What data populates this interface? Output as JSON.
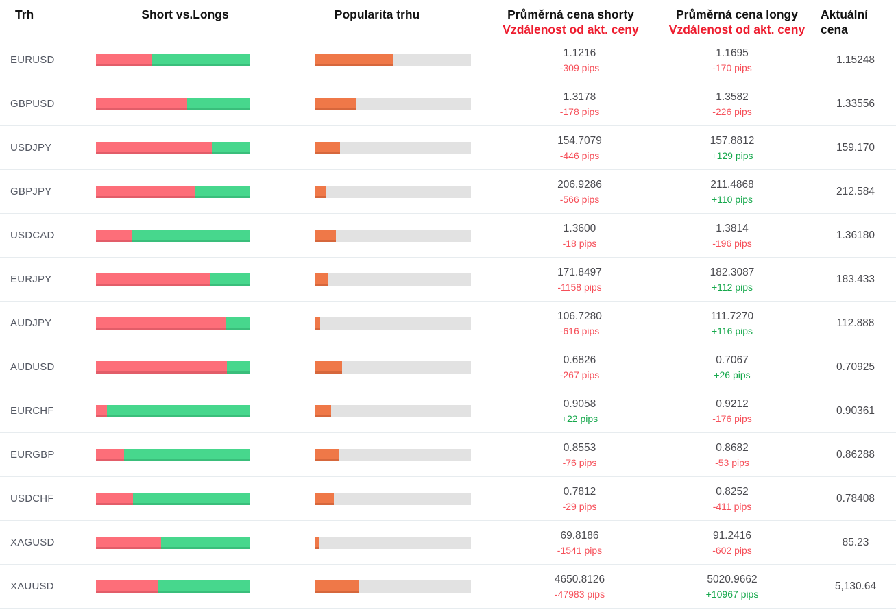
{
  "header": {
    "col_market": "Trh",
    "col_short_vs_longs": "Short vs.Longs",
    "col_popularity": "Popularita trhu",
    "col_avg_short_line1": "Průměrná cena shorty",
    "col_avg_short_line2": "Vzdálenost od akt. ceny",
    "col_avg_long_line1": "Průměrná cena longy",
    "col_avg_long_line2": "Vzdálenost od akt. ceny",
    "col_current_line1": "Aktuální",
    "col_current_line2": "cena"
  },
  "colors": {
    "short_bar": "#fd6e79",
    "short_bar_edge": "#e25d69",
    "long_bar": "#47d78d",
    "long_bar_edge": "#3abe7b",
    "popularity_bar": "#ef7848",
    "popularity_bar_edge": "#d6673c",
    "bar_track": "#e2e2e2",
    "negative_pips": "#f6505a",
    "positive_pips": "#16a84c",
    "header_red": "#ee1c2e",
    "row_separator": "#e7ecef"
  },
  "chart_data": {
    "type": "table",
    "columns": [
      "Trh",
      "Short vs.Longs",
      "Popularita trhu",
      "Průměrná cena shorty / Vzdálenost od akt. ceny",
      "Průměrná cena longy / Vzdálenost od akt. ceny",
      "Aktuální cena"
    ],
    "rows": [
      {
        "market": "EURUSD",
        "short_pct": 36,
        "long_pct": 64,
        "popularity_pct": 50,
        "avg_short_price": "1.1216",
        "short_distance": "-309 pips",
        "short_sign": "neg",
        "avg_long_price": "1.1695",
        "long_distance": "-170 pips",
        "long_sign": "neg",
        "current_price": "1.15248"
      },
      {
        "market": "GBPUSD",
        "short_pct": 59,
        "long_pct": 41,
        "popularity_pct": 26,
        "avg_short_price": "1.3178",
        "short_distance": "-178 pips",
        "short_sign": "neg",
        "avg_long_price": "1.3582",
        "long_distance": "-226 pips",
        "long_sign": "neg",
        "current_price": "1.33556"
      },
      {
        "market": "USDJPY",
        "short_pct": 75,
        "long_pct": 25,
        "popularity_pct": 16,
        "avg_short_price": "154.7079",
        "short_distance": "-446 pips",
        "short_sign": "neg",
        "avg_long_price": "157.8812",
        "long_distance": "+129 pips",
        "long_sign": "pos",
        "current_price": "159.170"
      },
      {
        "market": "GBPJPY",
        "short_pct": 64,
        "long_pct": 36,
        "popularity_pct": 7,
        "avg_short_price": "206.9286",
        "short_distance": "-566 pips",
        "short_sign": "neg",
        "avg_long_price": "211.4868",
        "long_distance": "+110 pips",
        "long_sign": "pos",
        "current_price": "212.584"
      },
      {
        "market": "USDCAD",
        "short_pct": 23,
        "long_pct": 77,
        "popularity_pct": 13,
        "avg_short_price": "1.3600",
        "short_distance": "-18 pips",
        "short_sign": "neg",
        "avg_long_price": "1.3814",
        "long_distance": "-196 pips",
        "long_sign": "neg",
        "current_price": "1.36180"
      },
      {
        "market": "EURJPY",
        "short_pct": 74,
        "long_pct": 26,
        "popularity_pct": 8,
        "avg_short_price": "171.8497",
        "short_distance": "-1158 pips",
        "short_sign": "neg",
        "avg_long_price": "182.3087",
        "long_distance": "+112 pips",
        "long_sign": "pos",
        "current_price": "183.433"
      },
      {
        "market": "AUDJPY",
        "short_pct": 84,
        "long_pct": 16,
        "popularity_pct": 3,
        "avg_short_price": "106.7280",
        "short_distance": "-616 pips",
        "short_sign": "neg",
        "avg_long_price": "111.7270",
        "long_distance": "+116 pips",
        "long_sign": "pos",
        "current_price": "112.888"
      },
      {
        "market": "AUDUSD",
        "short_pct": 85,
        "long_pct": 15,
        "popularity_pct": 17,
        "avg_short_price": "0.6826",
        "short_distance": "-267 pips",
        "short_sign": "neg",
        "avg_long_price": "0.7067",
        "long_distance": "+26 pips",
        "long_sign": "pos",
        "current_price": "0.70925"
      },
      {
        "market": "EURCHF",
        "short_pct": 7,
        "long_pct": 93,
        "popularity_pct": 10,
        "avg_short_price": "0.9058",
        "short_distance": "+22 pips",
        "short_sign": "pos",
        "avg_long_price": "0.9212",
        "long_distance": "-176 pips",
        "long_sign": "neg",
        "current_price": "0.90361"
      },
      {
        "market": "EURGBP",
        "short_pct": 18,
        "long_pct": 82,
        "popularity_pct": 15,
        "avg_short_price": "0.8553",
        "short_distance": "-76 pips",
        "short_sign": "neg",
        "avg_long_price": "0.8682",
        "long_distance": "-53 pips",
        "long_sign": "neg",
        "current_price": "0.86288"
      },
      {
        "market": "USDCHF",
        "short_pct": 24,
        "long_pct": 76,
        "popularity_pct": 12,
        "avg_short_price": "0.7812",
        "short_distance": "-29 pips",
        "short_sign": "neg",
        "avg_long_price": "0.8252",
        "long_distance": "-411 pips",
        "long_sign": "neg",
        "current_price": "0.78408"
      },
      {
        "market": "XAGUSD",
        "short_pct": 42,
        "long_pct": 58,
        "popularity_pct": 2,
        "avg_short_price": "69.8186",
        "short_distance": "-1541 pips",
        "short_sign": "neg",
        "avg_long_price": "91.2416",
        "long_distance": "-602 pips",
        "long_sign": "neg",
        "current_price": "85.23"
      },
      {
        "market": "XAUUSD",
        "short_pct": 40,
        "long_pct": 60,
        "popularity_pct": 28,
        "avg_short_price": "4650.8126",
        "short_distance": "-47983 pips",
        "short_sign": "neg",
        "avg_long_price": "5020.9662",
        "long_distance": "+10967 pips",
        "long_sign": "pos",
        "current_price": "5,130.64"
      }
    ]
  }
}
